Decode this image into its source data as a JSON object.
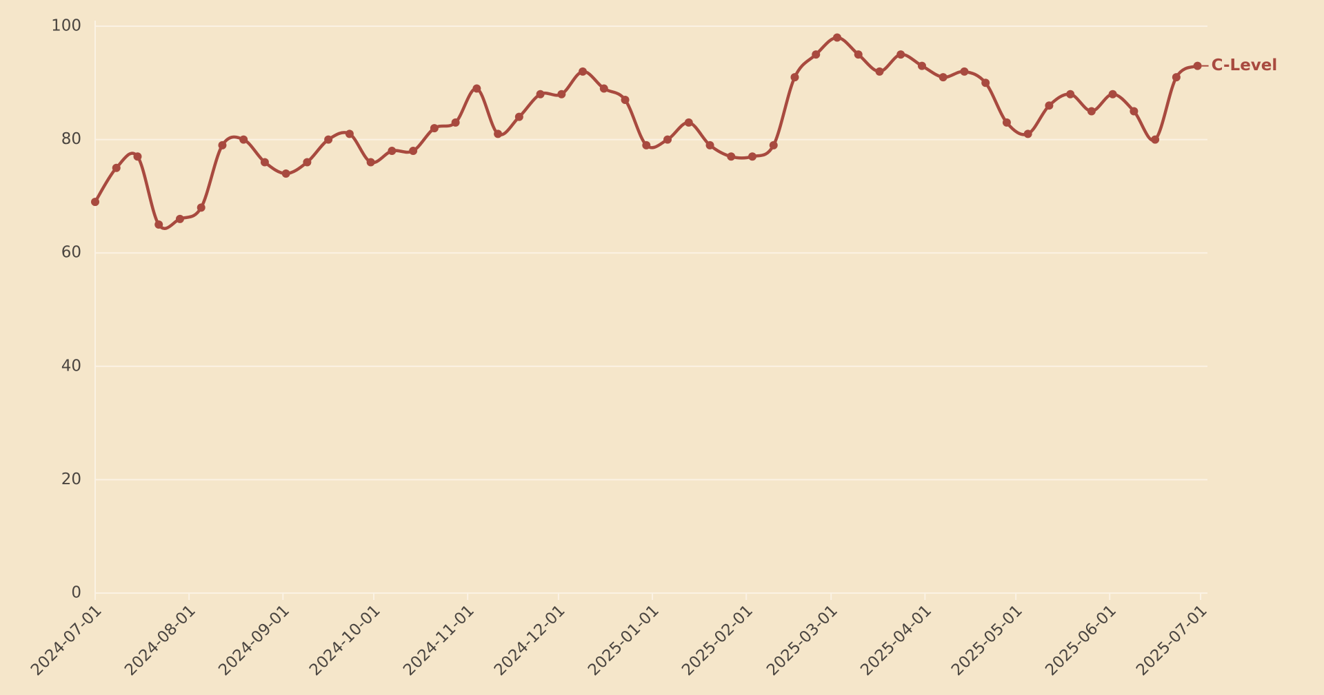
{
  "chart_data": {
    "type": "line",
    "x": [
      "2024-07-01",
      "2024-07-08",
      "2024-07-15",
      "2024-07-22",
      "2024-07-29",
      "2024-08-05",
      "2024-08-12",
      "2024-08-19",
      "2024-08-26",
      "2024-09-02",
      "2024-09-09",
      "2024-09-16",
      "2024-09-23",
      "2024-09-30",
      "2024-10-07",
      "2024-10-14",
      "2024-10-21",
      "2024-10-28",
      "2024-11-04",
      "2024-11-11",
      "2024-11-18",
      "2024-11-25",
      "2024-12-02",
      "2024-12-09",
      "2024-12-16",
      "2024-12-23",
      "2024-12-30",
      "2025-01-06",
      "2025-01-13",
      "2025-01-20",
      "2025-01-27",
      "2025-02-03",
      "2025-02-10",
      "2025-02-17",
      "2025-02-24",
      "2025-03-03",
      "2025-03-10",
      "2025-03-17",
      "2025-03-24",
      "2025-03-31",
      "2025-04-07",
      "2025-04-14",
      "2025-04-21",
      "2025-04-28",
      "2025-05-05",
      "2025-05-12",
      "2025-05-19",
      "2025-05-26",
      "2025-06-02",
      "2025-06-09",
      "2025-06-16",
      "2025-06-23",
      "2025-06-30"
    ],
    "series": [
      {
        "name": "C-Level",
        "color": "#a84a3f",
        "values": [
          69,
          75,
          77,
          65,
          66,
          68,
          79,
          80,
          76,
          74,
          76,
          80,
          81,
          76,
          78,
          78,
          82,
          83,
          89,
          81,
          84,
          88,
          88,
          92,
          89,
          87,
          79,
          80,
          83,
          79,
          77,
          77,
          79,
          91,
          95,
          98,
          95,
          92,
          95,
          93,
          91,
          92,
          90,
          83,
          81,
          86,
          88,
          85,
          88,
          85,
          80,
          91,
          93
        ]
      }
    ],
    "xlim": [
      "2024-07-01",
      "2025-07-01"
    ],
    "xticks": [
      "2024-07-01",
      "2024-08-01",
      "2024-09-01",
      "2024-10-01",
      "2024-11-01",
      "2024-12-01",
      "2025-01-01",
      "2025-02-01",
      "2025-03-01",
      "2025-04-01",
      "2025-05-01",
      "2025-06-01",
      "2025-07-01"
    ],
    "ylim": [
      0,
      100
    ],
    "yticks": [
      0,
      20,
      40,
      60,
      80,
      100
    ],
    "grid": true
  }
}
